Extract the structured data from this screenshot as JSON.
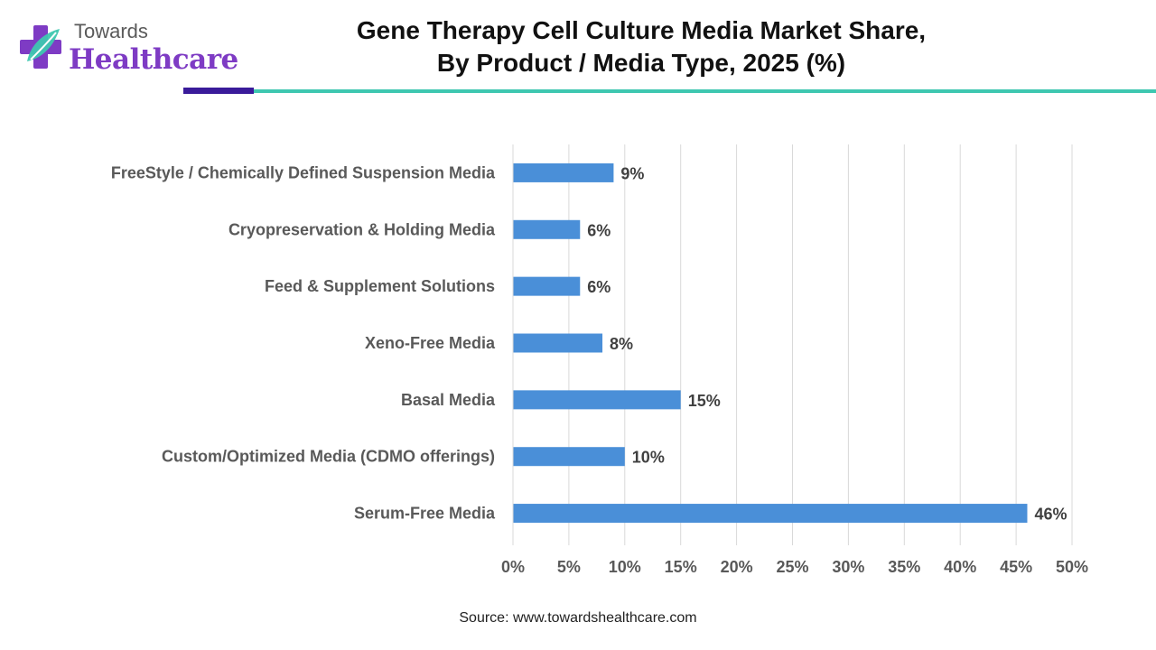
{
  "logo": {
    "line1": "Towards",
    "line2": "Healthcare"
  },
  "title_line1": "Gene Therapy Cell Culture Media Market Share,",
  "title_line2": "By Product / Media Type, 2025 (%)",
  "source": "Source: www.towardshealthcare.com",
  "colors": {
    "bar": "#4a8fd8",
    "accent_dark": "#3a1b9a",
    "accent_teal": "#3ec7b0",
    "logo_purple": "#7e3bc4"
  },
  "chart_data": {
    "type": "bar",
    "orientation": "horizontal",
    "categories": [
      "FreeStyle / Chemically Defined Suspension Media",
      "Cryopreservation & Holding Media",
      "Feed & Supplement Solutions",
      "Xeno-Free Media",
      "Basal Media",
      "Custom/Optimized Media (CDMO offerings)",
      "Serum-Free Media"
    ],
    "values": [
      9,
      6,
      6,
      8,
      15,
      10,
      46
    ],
    "data_labels": [
      "9%",
      "6%",
      "6%",
      "8%",
      "15%",
      "10%",
      "46%"
    ],
    "xlim": [
      0,
      50
    ],
    "x_ticks": [
      0,
      5,
      10,
      15,
      20,
      25,
      30,
      35,
      40,
      45,
      50
    ],
    "x_tick_labels": [
      "0%",
      "5%",
      "10%",
      "15%",
      "20%",
      "25%",
      "30%",
      "35%",
      "40%",
      "45%",
      "50%"
    ],
    "grid": "vertical",
    "legend": "none"
  }
}
